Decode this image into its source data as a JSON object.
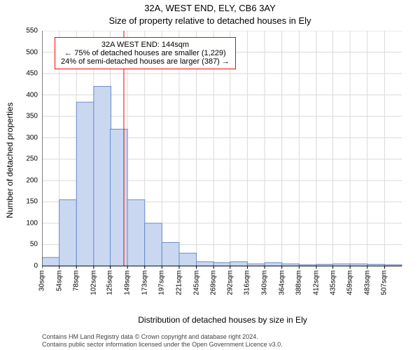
{
  "suptitle": "32A, WEST END, ELY, CB6 3AY",
  "subtitle": "Size of property relative to detached houses in Ely",
  "ylabel": "Number of detached properties",
  "xlabel": "Distribution of detached houses by size in Ely",
  "chart": {
    "type": "histogram",
    "x_edges": [
      30,
      54,
      78,
      102,
      125,
      149,
      173,
      197,
      221,
      245,
      269,
      292,
      316,
      340,
      364,
      388,
      412,
      435,
      459,
      483,
      507
    ],
    "x_tick_labels": [
      "30sqm",
      "54sqm",
      "78sqm",
      "102sqm",
      "125sqm",
      "149sqm",
      "173sqm",
      "197sqm",
      "221sqm",
      "245sqm",
      "269sqm",
      "292sqm",
      "316sqm",
      "340sqm",
      "364sqm",
      "388sqm",
      "412sqm",
      "435sqm",
      "459sqm",
      "483sqm",
      "507sqm"
    ],
    "values": [
      20,
      155,
      383,
      420,
      320,
      155,
      100,
      55,
      30,
      10,
      8,
      10,
      5,
      8,
      5,
      3,
      4,
      5,
      5,
      4,
      3
    ],
    "xlim": [
      30,
      531
    ],
    "ylim": [
      0,
      550
    ],
    "y_ticks": [
      0,
      50,
      100,
      150,
      200,
      250,
      300,
      350,
      400,
      450,
      500,
      550
    ],
    "bar_fill": "#c9d8f0",
    "bar_stroke": "#6a8bc8",
    "background": "#ffffff",
    "grid_color": "#d9d9d9",
    "axis_color": "#000000",
    "reference_line": {
      "x": 144,
      "color": "#ff0000",
      "width": 1
    }
  },
  "annotation": {
    "border_color": "#ff0000",
    "background": "#ffffff",
    "fontsize": 11,
    "line1": "32A WEST END: 144sqm",
    "line2": "← 75% of detached houses are smaller (1,229)",
    "line3": "24% of semi-detached houses are larger (387) →",
    "y_center_value": 500
  },
  "footer": {
    "line1": "Contains HM Land Registry data © Crown copyright and database right 2024.",
    "line2": "Contains public sector information licensed under the Open Government Licence v3.0.",
    "color": "#444444",
    "fontsize": 9
  }
}
